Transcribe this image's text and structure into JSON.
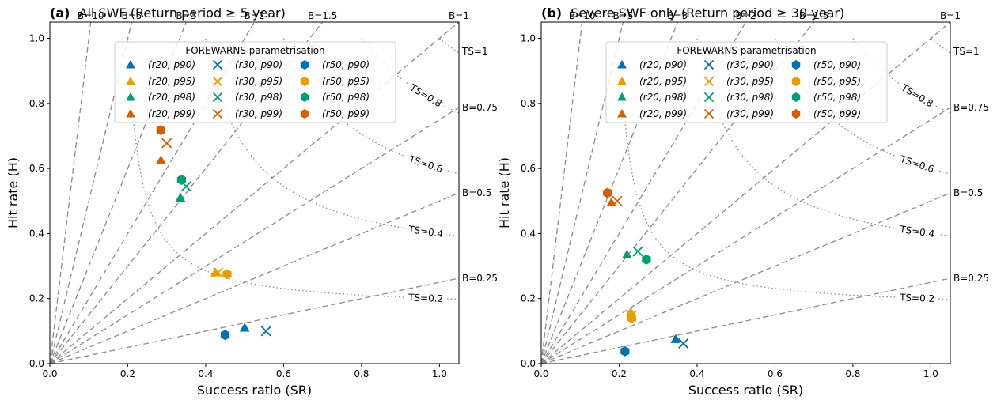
{
  "figure": {
    "marker_colors": {
      "r20": "#0072B2",
      "r30": "#E69F00",
      "r50": "#009E73",
      "p90": "#0072B2",
      "p95": "#E69F00",
      "p98": "#009E73",
      "p99": "#D55E00"
    }
  },
  "chart_data": [
    {
      "type": "scatter",
      "panel_label": "(a)",
      "title": "All SWF (Return period ≥ 5 year)",
      "xlabel": "Success ratio (SR)",
      "ylabel": "Hit rate (H)",
      "xlim": [
        0,
        1.05
      ],
      "ylim": [
        0,
        1.05
      ],
      "xticks": [
        "0.0",
        "0.2",
        "0.4",
        "0.6",
        "0.8",
        "1.0"
      ],
      "yticks": [
        "0.0",
        "0.2",
        "0.4",
        "0.6",
        "0.8",
        "1.0"
      ],
      "grid": false,
      "bias_lines": [
        {
          "label": "B=10",
          "value": 10
        },
        {
          "label": "B=5",
          "value": 5
        },
        {
          "label": "B=3",
          "value": 3
        },
        {
          "label": "B=2",
          "value": 2
        },
        {
          "label": "B=1.5",
          "value": 1.5
        },
        {
          "label": "B=1",
          "value": 1
        },
        {
          "label": "B=0.75",
          "value": 0.75
        },
        {
          "label": "B=0.5",
          "value": 0.5
        },
        {
          "label": "B=0.25",
          "value": 0.25
        }
      ],
      "ts_lines": [
        {
          "label": "TS=1",
          "value": 1
        },
        {
          "label": "TS=0.8",
          "value": 0.8
        },
        {
          "label": "TS=0.6",
          "value": 0.6
        },
        {
          "label": "TS=0.4",
          "value": 0.4
        },
        {
          "label": "TS=0.2",
          "value": 0.2
        }
      ],
      "legend": {
        "title": "FOREWARNS parametrisation",
        "position": "top",
        "entries": [
          "(r20, p90)",
          "(r20, p95)",
          "(r20, p98)",
          "(r20, p99)",
          "(r30, p90)",
          "(r30, p95)",
          "(r30, p98)",
          "(r30, p99)",
          "(r50, p90)",
          "(r50, p95)",
          "(r50, p98)",
          "(r50, p99)"
        ]
      },
      "points": [
        {
          "series": "(r20, p90)",
          "r": "r20",
          "p": "p90",
          "marker": "triangle",
          "x": 0.5,
          "y": 0.11
        },
        {
          "series": "(r20, p95)",
          "r": "r20",
          "p": "p95",
          "marker": "triangle",
          "x": 0.425,
          "y": 0.28
        },
        {
          "series": "(r20, p98)",
          "r": "r20",
          "p": "p98",
          "marker": "triangle",
          "x": 0.335,
          "y": 0.51
        },
        {
          "series": "(r20, p99)",
          "r": "r20",
          "p": "p99",
          "marker": "triangle",
          "x": 0.285,
          "y": 0.625
        },
        {
          "series": "(r30, p90)",
          "r": "r30",
          "p": "p90",
          "marker": "x",
          "x": 0.555,
          "y": 0.1
        },
        {
          "series": "(r30, p95)",
          "r": "r30",
          "p": "p95",
          "marker": "x",
          "x": 0.432,
          "y": 0.28
        },
        {
          "series": "(r30, p98)",
          "r": "r30",
          "p": "p98",
          "marker": "x",
          "x": 0.35,
          "y": 0.545
        },
        {
          "series": "(r30, p99)",
          "r": "r30",
          "p": "p99",
          "marker": "x",
          "x": 0.3,
          "y": 0.678
        },
        {
          "series": "(r50, p90)",
          "r": "r50",
          "p": "p90",
          "marker": "hexagon",
          "x": 0.45,
          "y": 0.088
        },
        {
          "series": "(r50, p95)",
          "r": "r50",
          "p": "p95",
          "marker": "hexagon",
          "x": 0.455,
          "y": 0.275
        },
        {
          "series": "(r50, p98)",
          "r": "r50",
          "p": "p98",
          "marker": "hexagon",
          "x": 0.338,
          "y": 0.565
        },
        {
          "series": "(r50, p99)",
          "r": "r50",
          "p": "p99",
          "marker": "hexagon",
          "x": 0.285,
          "y": 0.718
        }
      ]
    },
    {
      "type": "scatter",
      "panel_label": "(b)",
      "title": "Severe SWF only (Return period ≥ 30 year)",
      "xlabel": "Success ratio (SR)",
      "ylabel": "Hit rate (H)",
      "xlim": [
        0,
        1.05
      ],
      "ylim": [
        0,
        1.05
      ],
      "xticks": [
        "0.0",
        "0.2",
        "0.4",
        "0.6",
        "0.8",
        "1.0"
      ],
      "yticks": [
        "0.0",
        "0.2",
        "0.4",
        "0.6",
        "0.8",
        "1.0"
      ],
      "grid": false,
      "bias_lines": [
        {
          "label": "B=10",
          "value": 10
        },
        {
          "label": "B=5",
          "value": 5
        },
        {
          "label": "B=3",
          "value": 3
        },
        {
          "label": "B=2",
          "value": 2
        },
        {
          "label": "B=1.5",
          "value": 1.5
        },
        {
          "label": "B=1",
          "value": 1
        },
        {
          "label": "B=0.75",
          "value": 0.75
        },
        {
          "label": "B=0.5",
          "value": 0.5
        },
        {
          "label": "B=0.25",
          "value": 0.25
        }
      ],
      "ts_lines": [
        {
          "label": "TS=1",
          "value": 1
        },
        {
          "label": "TS=0.8",
          "value": 0.8
        },
        {
          "label": "TS=0.6",
          "value": 0.6
        },
        {
          "label": "TS=0.4",
          "value": 0.4
        },
        {
          "label": "TS=0.2",
          "value": 0.2
        }
      ],
      "legend": {
        "title": "FOREWARNS parametrisation",
        "position": "top",
        "entries": [
          "(r20, p90)",
          "(r20, p95)",
          "(r20, p98)",
          "(r20, p99)",
          "(r30, p90)",
          "(r30, p95)",
          "(r30, p98)",
          "(r30, p99)",
          "(r50, p90)",
          "(r50, p95)",
          "(r50, p98)",
          "(r50, p99)"
        ]
      },
      "points": [
        {
          "series": "(r20, p90)",
          "r": "r20",
          "p": "p90",
          "marker": "triangle",
          "x": 0.345,
          "y": 0.075
        },
        {
          "series": "(r20, p95)",
          "r": "r20",
          "p": "p95",
          "marker": "triangle",
          "x": 0.23,
          "y": 0.158
        },
        {
          "series": "(r20, p98)",
          "r": "r20",
          "p": "p98",
          "marker": "triangle",
          "x": 0.22,
          "y": 0.335
        },
        {
          "series": "(r20, p99)",
          "r": "r20",
          "p": "p99",
          "marker": "triangle",
          "x": 0.18,
          "y": 0.495
        },
        {
          "series": "(r30, p90)",
          "r": "r30",
          "p": "p90",
          "marker": "x",
          "x": 0.365,
          "y": 0.062
        },
        {
          "series": "(r30, p95)",
          "r": "r30",
          "p": "p95",
          "marker": "x",
          "x": 0.232,
          "y": 0.148
        },
        {
          "series": "(r30, p98)",
          "r": "r30",
          "p": "p98",
          "marker": "x",
          "x": 0.248,
          "y": 0.345
        },
        {
          "series": "(r30, p99)",
          "r": "r30",
          "p": "p99",
          "marker": "x",
          "x": 0.195,
          "y": 0.5
        },
        {
          "series": "(r50, p90)",
          "r": "r50",
          "p": "p90",
          "marker": "hexagon",
          "x": 0.215,
          "y": 0.038
        },
        {
          "series": "(r50, p95)",
          "r": "r50",
          "p": "p95",
          "marker": "hexagon",
          "x": 0.232,
          "y": 0.14
        },
        {
          "series": "(r50, p98)",
          "r": "r50",
          "p": "p98",
          "marker": "hexagon",
          "x": 0.27,
          "y": 0.32
        },
        {
          "series": "(r50, p99)",
          "r": "r50",
          "p": "p99",
          "marker": "hexagon",
          "x": 0.17,
          "y": 0.525
        }
      ]
    }
  ]
}
